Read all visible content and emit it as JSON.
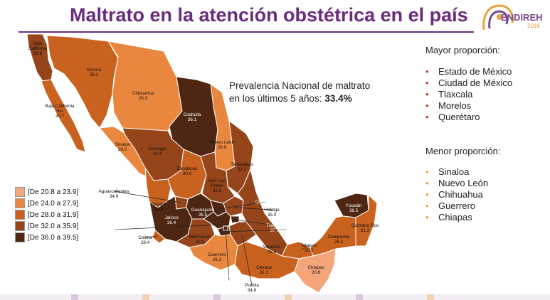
{
  "title": "Maltrato en la atención obstétrica en el país",
  "logo": {
    "text": "ENDIREH",
    "year": "2016"
  },
  "prevalence": {
    "line1": "Prevalencia Nacional de maltrato",
    "line2": "en los últimos 5 años:",
    "value": "33.4%"
  },
  "mayor": {
    "heading": "Mayor proporción:",
    "items": [
      "Estado de México",
      "Ciudad de México",
      "Tlaxcala",
      "Morelos",
      "Querétaro"
    ],
    "bullet_color": "#c0392b"
  },
  "menor": {
    "heading": "Menor proporción:",
    "items": [
      "Sinaloa",
      "Nuevo León",
      "Chihuahua",
      "Guerrero",
      "Chiapas"
    ],
    "bullet_color": "#e8a33a"
  },
  "legend": [
    {
      "label": "[De 20.8 a 23.9]",
      "color": "#f4a57a"
    },
    {
      "label": "[De 24.0 a 27.9]",
      "color": "#e9873f"
    },
    {
      "label": "[De 28.0 a 31.9]",
      "color": "#c9611f"
    },
    {
      "label": "[De 32.0 a 35.9]",
      "color": "#96441a"
    },
    {
      "label": "[De 36.0 a 39.5]",
      "color": "#4f2612"
    }
  ],
  "states": [
    {
      "name": "Baja California",
      "value": "34.8"
    },
    {
      "name": "Baja California Sur",
      "value": "30.7"
    },
    {
      "name": "Sonora",
      "value": "28.2"
    },
    {
      "name": "Chihuahua",
      "value": "26.3"
    },
    {
      "name": "Coahuila",
      "value": "36.1"
    },
    {
      "name": "Nuevo León",
      "value": "26.9"
    },
    {
      "name": "Tamaulipas",
      "value": "32.2"
    },
    {
      "name": "Sinaloa",
      "value": "26.0"
    },
    {
      "name": "Durango",
      "value": "32.4"
    },
    {
      "name": "Zacatecas",
      "value": "30.6"
    },
    {
      "name": "San Luis Potosí",
      "value": "33.0"
    },
    {
      "name": "Nayarit",
      "value": "28.3"
    },
    {
      "name": "Aguascalientes",
      "value": "34.9"
    },
    {
      "name": "Jalisco",
      "value": "36.4"
    },
    {
      "name": "Guanajuato",
      "value": "36.5"
    },
    {
      "name": "Querétaro",
      "value": "36.9"
    },
    {
      "name": "Hidalgo",
      "value": "35.0"
    },
    {
      "name": "Estado de México",
      "value": "39.5"
    },
    {
      "name": "Colima",
      "value": "28.4"
    },
    {
      "name": "Michoacán",
      "value": "32.9"
    },
    {
      "name": "Tlaxcala",
      "value": "37.7"
    },
    {
      "name": "Morelos",
      "value": "37.2"
    },
    {
      "name": "Veracruz",
      "value": "33.6"
    },
    {
      "name": "Tabasco",
      "value": "30.5"
    },
    {
      "name": "Yucatán",
      "value": "36.5"
    },
    {
      "name": "Quintana Roo",
      "value": "31.3"
    },
    {
      "name": "Campeche",
      "value": "28.4"
    },
    {
      "name": "Guerrero",
      "value": "26.3"
    },
    {
      "name": "Oaxaca",
      "value": "31.1"
    },
    {
      "name": "Chiapas",
      "value": "20.8"
    },
    {
      "name": "Ciudad de México",
      "value": "39.2"
    },
    {
      "name": "Puebla",
      "value": "34.8"
    }
  ],
  "label_text": {
    "Baja California": [
      "Baja",
      "California"
    ],
    "Baja California Sur": [
      "Baja California",
      "Sur"
    ],
    "San Luis Potosí": [
      "San Luis",
      "Potosí"
    ],
    "Estado de México": [
      "Estado de",
      "México"
    ],
    "Quintana Roo": [
      "Quintana Roo"
    ],
    "Ciudad de México": [
      "Ciudad de",
      "México"
    ]
  }
}
